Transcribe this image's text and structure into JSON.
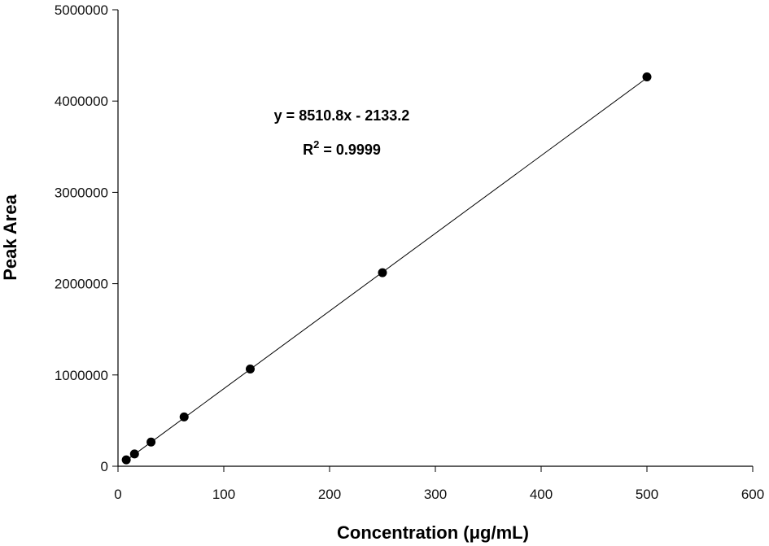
{
  "chart_data": {
    "type": "scatter",
    "xlabel": "Concentration (μg/mL)",
    "ylabel": "Peak Area",
    "xlim": [
      0,
      600
    ],
    "ylim": [
      0,
      5000000
    ],
    "x_ticks": [
      0,
      100,
      200,
      300,
      400,
      500,
      600
    ],
    "y_ticks": [
      0,
      1000000,
      2000000,
      3000000,
      4000000,
      5000000
    ],
    "x_tick_labels": [
      "0",
      "100",
      "200",
      "300",
      "400",
      "500",
      "600"
    ],
    "y_tick_labels": [
      "0",
      "1000000",
      "2000000",
      "3000000",
      "4000000",
      "5000000"
    ],
    "grid": false,
    "series": [
      {
        "x": [
          7.8,
          15.6,
          31.25,
          62.5,
          125,
          250,
          500
        ],
        "y": [
          70000,
          135000,
          265000,
          540000,
          1065000,
          2120000,
          4265000
        ]
      }
    ],
    "trendline": {
      "slope": 8510.8,
      "intercept": -2133.2,
      "x_range": [
        7.8,
        500
      ]
    },
    "annotations": {
      "equation": "y = 8510.8x - 2133.2",
      "r2_prefix": "R",
      "r2_sup": "2",
      "r2_suffix": " = 0.9999"
    },
    "colors": {
      "marker": "#000000",
      "line": "#000000",
      "axis": "#000000"
    }
  }
}
